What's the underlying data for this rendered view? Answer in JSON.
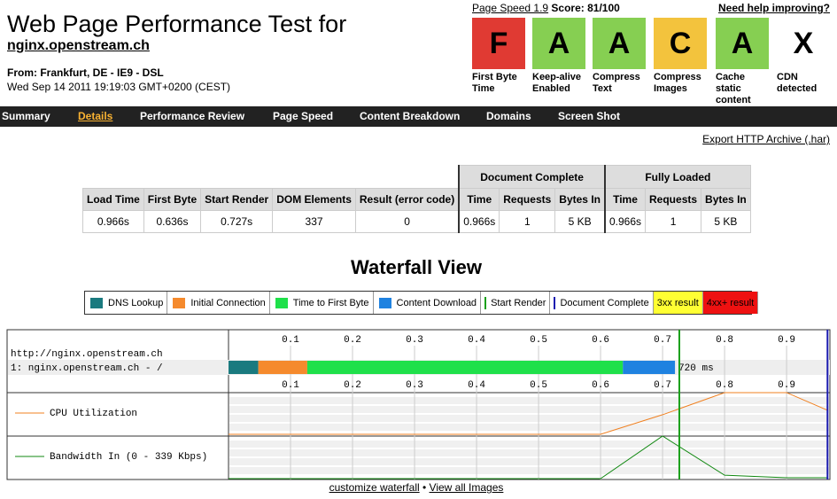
{
  "header": {
    "title": "Web Page Performance Test for",
    "site": "nginx.openstream.ch",
    "from": "From: Frankfurt, DE - IE9 - DSL",
    "date": "Wed Sep 14 2011 19:19:03 GMT+0200 (CEST)"
  },
  "pagespeed": {
    "link": "Page Speed 1.9",
    "score": "Score: 81/100",
    "help": "Need help improving?"
  },
  "grades": [
    {
      "grade": "F",
      "label": "First Byte Time",
      "color": "#e03a33"
    },
    {
      "grade": "A",
      "label": "Keep-alive Enabled",
      "color": "#86cf52"
    },
    {
      "grade": "A",
      "label": "Compress Text",
      "color": "#86cf52"
    },
    {
      "grade": "C",
      "label": "Compress Images",
      "color": "#f3c33d"
    },
    {
      "grade": "A",
      "label": "Cache static content",
      "color": "#86cf52"
    },
    {
      "grade": "X",
      "label": "CDN detected",
      "color": "#ffffff"
    }
  ],
  "nav": [
    {
      "label": "Summary"
    },
    {
      "label": "Details",
      "active": true
    },
    {
      "label": "Performance Review"
    },
    {
      "label": "Page Speed"
    },
    {
      "label": "Content Breakdown"
    },
    {
      "label": "Domains"
    },
    {
      "label": "Screen Shot"
    }
  ],
  "export": "Export HTTP Archive (.har)",
  "table": {
    "groups": [
      "Document Complete",
      "Fully Loaded"
    ],
    "headers": [
      "Load Time",
      "First Byte",
      "Start Render",
      "DOM Elements",
      "Result (error code)",
      "Time",
      "Requests",
      "Bytes In",
      "Time",
      "Requests",
      "Bytes In"
    ],
    "row": [
      "0.966s",
      "0.636s",
      "0.727s",
      "337",
      "0",
      "0.966s",
      "1",
      "5 KB",
      "0.966s",
      "1",
      "5 KB"
    ]
  },
  "waterfall": {
    "title": "Waterfall View",
    "legend": [
      {
        "label": "DNS Lookup",
        "color": "#1a7a7f"
      },
      {
        "label": "Initial Connection",
        "color": "#f58a2d"
      },
      {
        "label": "Time to First Byte",
        "color": "#1fe04a"
      },
      {
        "label": "Content Download",
        "color": "#1f82e0"
      },
      {
        "label": "Start Render",
        "color": "#1aa01a"
      },
      {
        "label": "Document Complete",
        "color": "#1a1ab0"
      },
      {
        "label": "3xx result",
        "color": "#ffff33"
      },
      {
        "label": "4xx+ result",
        "color": "#ee1111"
      }
    ],
    "url": "http://nginx.openstream.ch",
    "request": "1: nginx.openstream.ch - /",
    "total": "720 ms",
    "xlim": [
      0,
      0.967
    ],
    "xticks": [
      0.1,
      0.2,
      0.3,
      0.4,
      0.5,
      0.6,
      0.7,
      0.8,
      0.9
    ],
    "segments": [
      {
        "start": 0,
        "end": 0.048,
        "color": "#1a7a7f"
      },
      {
        "start": 0.048,
        "end": 0.127,
        "color": "#f58a2d"
      },
      {
        "start": 0.127,
        "end": 0.636,
        "color": "#1fe04a"
      },
      {
        "start": 0.636,
        "end": 0.72,
        "color": "#1f82e0"
      }
    ],
    "start_render": 0.727,
    "doc_complete": 0.966,
    "cpu": {
      "label": "CPU Utilization",
      "color": "#f08020",
      "ylim": [
        0,
        100
      ],
      "x": [
        0,
        0.6,
        0.7,
        0.8,
        0.9,
        0.967
      ],
      "values": [
        0,
        0,
        47,
        100,
        100,
        57
      ]
    },
    "bandwidth": {
      "label": "Bandwidth In (0 - 339 Kbps)",
      "color": "#118811",
      "ylim": [
        0,
        339
      ],
      "x": [
        0,
        0.6,
        0.7,
        0.8,
        0.9,
        0.967
      ],
      "values": [
        0,
        0,
        339,
        27,
        7,
        7
      ]
    }
  },
  "footer": {
    "customize": "customize waterfall",
    "sep": "•",
    "images": "View all Images"
  }
}
